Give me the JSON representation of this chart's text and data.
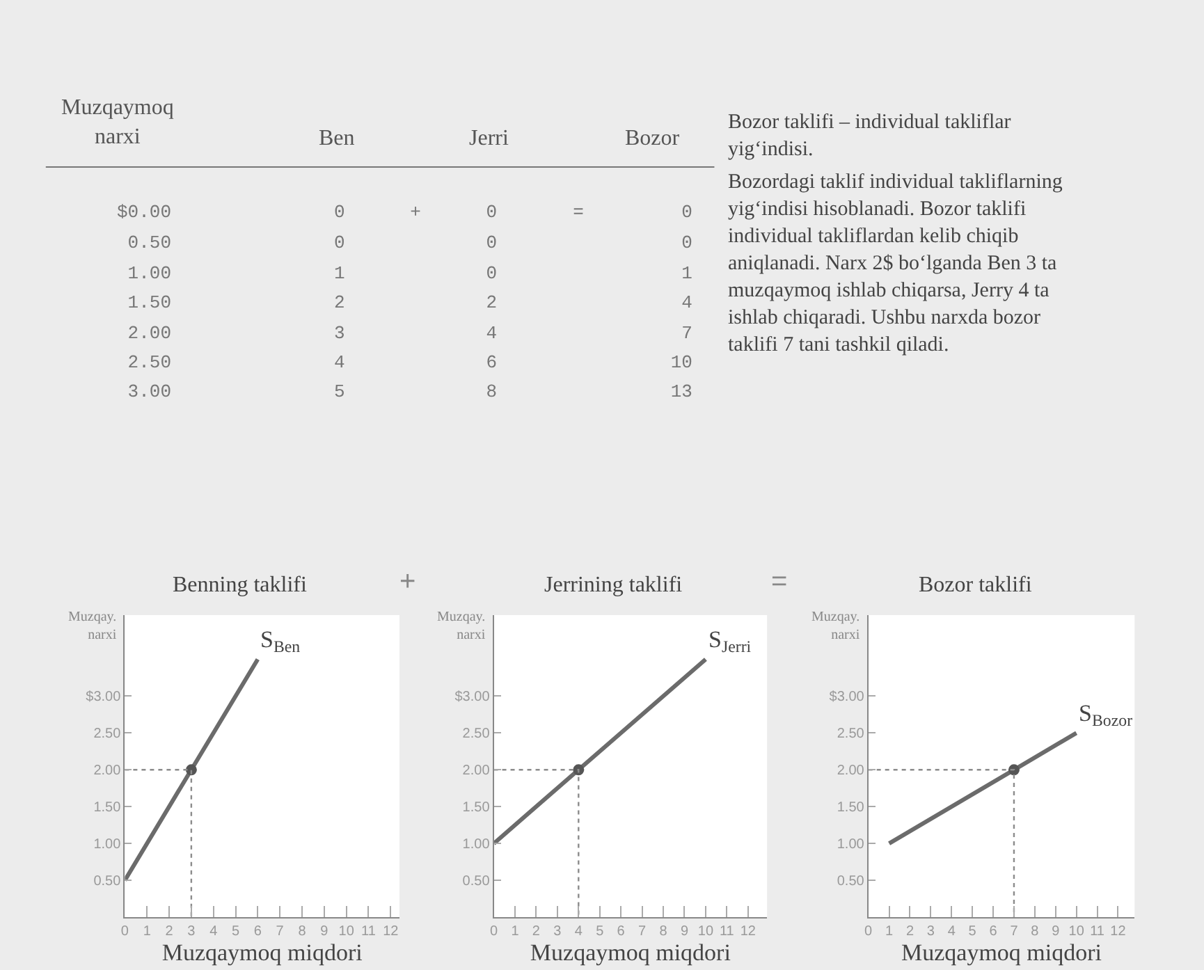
{
  "chart_data": [
    {
      "type": "other",
      "annotations": [
        "Muzqaymoq\nnarxi",
        "Ben",
        "Jerri",
        "Bozor",
        "$0.00 0 + 0 = 0",
        "0.50 0 0 0",
        "1.00 1 0 1",
        "1.50 2 2 4",
        "2.00 3 4 7",
        "2.50 4 6 10",
        "3.00 5 8 13"
      ]
    },
    {
      "type": "other",
      "annotations": [
        "Bozor taklifi – individual takliflar yig‘indisi.",
        "Bozordagi taklif individual takliflarning yig‘indisi hisoblanadi. Bozor taklifi individual takliflardan kelib chiqib aniqlanadi. Narx 2$ bo‘lganda Ben 3 ta muzqaymoq ishlab chiqarsa, Jerry 4 ta ishlab chiqaradi. Ushbu narxda bozor taklifi 7 tani tashkil qiladi."
      ]
    },
    {
      "type": "line",
      "title": "Benning taklifi",
      "xlabel": "Muzqaymoq miqdori",
      "ylabel": "Muzqay.\nnarxi",
      "series": [
        {
          "x": [
            0,
            3,
            6
          ],
          "values": [
            0.5,
            2,
            3.5
          ],
          "color": "#6b6b6b",
          "marker": "none",
          "line_style": "solid"
        },
        {
          "type": "scatter",
          "x": [
            3
          ],
          "values": [
            2
          ],
          "color": "#555555",
          "marker": "circle"
        },
        {
          "x": [
            0,
            3,
            3
          ],
          "values": [
            2,
            2,
            0
          ],
          "color": "#8c8c8c",
          "marker": "none",
          "line_style": "dotted"
        }
      ],
      "annotations": [
        "S$_{Ben}$",
        "+"
      ],
      "xlim": [
        0,
        12.4
      ],
      "xticks": [
        0,
        1,
        2,
        3,
        4,
        5,
        6,
        7,
        8,
        9,
        10,
        11,
        12
      ],
      "ylim": [
        0,
        4.1
      ],
      "yticks": [
        {
          "value": 0.5,
          "label": "0.50"
        },
        {
          "value": 1,
          "label": "1.00"
        },
        {
          "value": 1.5,
          "label": "1.50"
        },
        {
          "value": 2,
          "label": "2.00"
        },
        {
          "value": 2.5,
          "label": "2.50"
        },
        {
          "value": 3,
          "label": "$3.00"
        }
      ]
    },
    {
      "type": "line",
      "title": "Jerrining taklifi",
      "xlabel": "Muzqaymoq miqdori",
      "ylabel": "Muzqay.\nnarxi",
      "series": [
        {
          "x": [
            0,
            4,
            10
          ],
          "values": [
            1,
            2,
            3.5
          ],
          "color": "#6b6b6b",
          "marker": "none",
          "line_style": "solid"
        },
        {
          "type": "scatter",
          "x": [
            4
          ],
          "values": [
            2
          ],
          "color": "#555555",
          "marker": "circle"
        },
        {
          "x": [
            0,
            4,
            4
          ],
          "values": [
            2,
            2,
            0
          ],
          "color": "#8c8c8c",
          "marker": "none",
          "line_style": "dotted"
        }
      ],
      "annotations": [
        "S$_{Jerri}$",
        "="
      ],
      "xlim": [
        0,
        12.9
      ],
      "xticks": [
        0,
        1,
        2,
        3,
        4,
        5,
        6,
        7,
        8,
        9,
        10,
        11,
        12
      ],
      "ylim": [
        0,
        4.1
      ],
      "yticks": [
        {
          "value": 0.5,
          "label": "0.50"
        },
        {
          "value": 1,
          "label": "1.00"
        },
        {
          "value": 1.5,
          "label": "1.50"
        },
        {
          "value": 2,
          "label": "2.00"
        },
        {
          "value": 2.5,
          "label": "2.50"
        },
        {
          "value": 3,
          "label": "$3.00"
        }
      ]
    },
    {
      "type": "line",
      "title": "Bozor taklifi",
      "xlabel": "Muzqaymoq miqdori",
      "ylabel": "Muzqay.\nnarxi",
      "series": [
        {
          "x": [
            1,
            7,
            10
          ],
          "values": [
            1,
            2,
            2.5
          ],
          "color": "#6b6b6b",
          "marker": "none",
          "line_style": "solid"
        },
        {
          "type": "scatter",
          "x": [
            7
          ],
          "values": [
            2
          ],
          "color": "#555555",
          "marker": "circle"
        },
        {
          "x": [
            0,
            7,
            7
          ],
          "values": [
            2,
            2,
            0
          ],
          "color": "#8c8c8c",
          "marker": "none",
          "line_style": "dotted"
        }
      ],
      "annotations": [
        "S$_{Bozor}$"
      ],
      "xlim": [
        0,
        12.8
      ],
      "xticks": [
        0,
        1,
        2,
        3,
        4,
        5,
        6,
        7,
        8,
        9,
        10,
        11,
        12
      ],
      "ylim": [
        0,
        4.1
      ],
      "yticks": [
        {
          "value": 0.5,
          "label": "0.50"
        },
        {
          "value": 1,
          "label": "1.00"
        },
        {
          "value": 1.5,
          "label": "1.50"
        },
        {
          "value": 2,
          "label": "2.00"
        },
        {
          "value": 2.5,
          "label": "2.50"
        },
        {
          "value": 3,
          "label": "$3.00"
        }
      ]
    }
  ]
}
